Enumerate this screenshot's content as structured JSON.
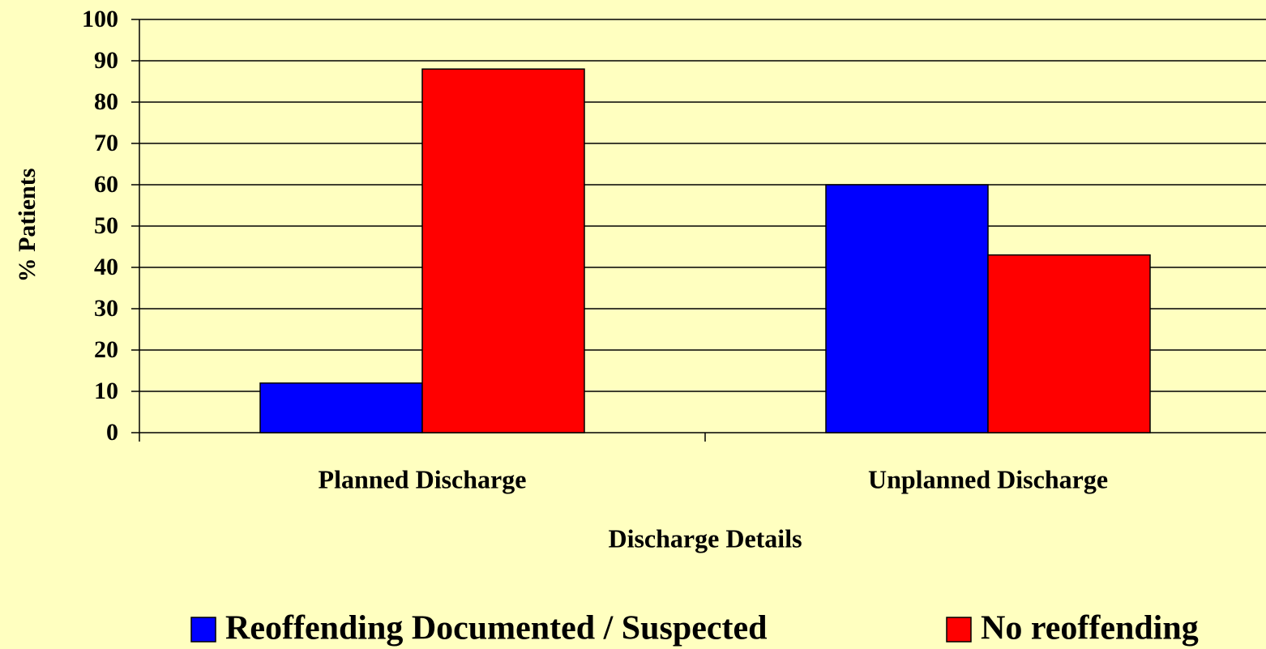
{
  "chart_data": {
    "type": "bar",
    "x_label": "Discharge Details",
    "y_label": "% Patients",
    "categories": [
      "Planned Discharge",
      "Unplanned Discharge"
    ],
    "series": [
      {
        "name": "Reoffending Documented / Suspected",
        "color": "#0000FF",
        "values": [
          12,
          60
        ]
      },
      {
        "name": "No reoffending",
        "color": "#FF0000",
        "values": [
          88,
          43
        ]
      }
    ],
    "ylim": [
      0,
      100
    ],
    "yticks": [
      0,
      10,
      20,
      30,
      40,
      50,
      60,
      70,
      80,
      90,
      100
    ],
    "grid": true,
    "legend": "bottom"
  }
}
